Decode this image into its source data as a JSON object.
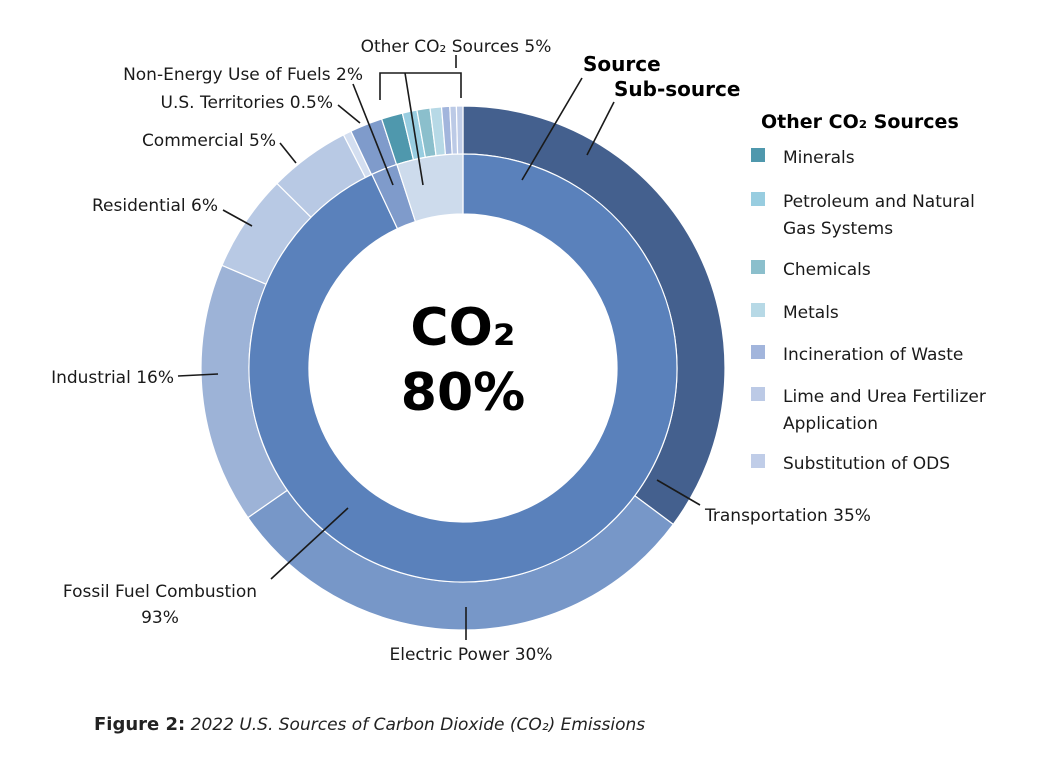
{
  "chart_data": {
    "type": "donut",
    "center_label_line1": "CO₂",
    "center_label_line2": "80%",
    "ring_legend": {
      "inner": "Source",
      "outer": "Sub-source"
    },
    "inner_ring": {
      "slices": [
        {
          "name": "Fossil Fuel Combustion",
          "label_line1": "Fossil Fuel Combustion",
          "label_line2": "93%",
          "value": 93,
          "color": "#5a81bb"
        },
        {
          "name": "Non-Energy Use of Fuels",
          "label": "Non-Energy Use of Fuels 2%",
          "value": 2,
          "color": "#7f9bcb"
        },
        {
          "name": "Other CO₂ Sources",
          "label": "Other CO₂ Sources 5%",
          "value": 5,
          "color": "#cddbec"
        }
      ]
    },
    "outer_ring": {
      "slices": [
        {
          "name": "Transportation",
          "label": "Transportation 35%",
          "value": 35,
          "color": "#44608e"
        },
        {
          "name": "Electric Power",
          "label": "Electric Power 30%",
          "value": 30,
          "color": "#7797c8"
        },
        {
          "name": "Industrial",
          "label": "Industrial 16%",
          "value": 16,
          "color": "#9db3d7"
        },
        {
          "name": "Residential",
          "label": "Residential 6%",
          "value": 6,
          "color": "#b8c9e4"
        },
        {
          "name": "Commercial",
          "label": "Commercial 5%",
          "value": 5,
          "color": "#b8c9e4"
        },
        {
          "name": "U.S. Territories",
          "label": "U.S. Territories 0.5%",
          "value": 0.5,
          "color": "#d3def0"
        },
        {
          "name": "Non-Energy Use of Fuels",
          "label": "",
          "value": 2,
          "color": "#7f9bcb"
        },
        {
          "name": "Minerals",
          "value": 1.3,
          "color": "#4f98ad"
        },
        {
          "name": "Petroleum and Natural Gas Systems",
          "value": 0.9,
          "color": "#98cde0"
        },
        {
          "name": "Chemicals",
          "value": 0.8,
          "color": "#8bbfcc"
        },
        {
          "name": "Metals",
          "value": 0.7,
          "color": "#b7d9e6"
        },
        {
          "name": "Incineration of Waste",
          "value": 0.5,
          "color": "#a2b5dc"
        },
        {
          "name": "Lime and Urea Fertilizer Application",
          "value": 0.4,
          "color": "#bccae6"
        },
        {
          "name": "Substitution of ODS",
          "value": 0.4,
          "color": "#c0cde8"
        }
      ]
    },
    "legend": {
      "title": "Other CO₂ Sources",
      "items": [
        {
          "line1": "Minerals",
          "line2": "",
          "color": "#4f98ad"
        },
        {
          "line1": "Petroleum and Natural",
          "line2": "Gas Systems",
          "color": "#98cde0"
        },
        {
          "line1": "Chemicals",
          "line2": "",
          "color": "#8bbfcc"
        },
        {
          "line1": "Metals",
          "line2": "",
          "color": "#b7d9e6"
        },
        {
          "line1": "Incineration of Waste",
          "line2": "",
          "color": "#a2b5dc"
        },
        {
          "line1": "Lime and Urea Fertilizer",
          "line2": "Application",
          "color": "#bccae6"
        },
        {
          "line1": "Substitution of ODS",
          "line2": "",
          "color": "#c0cde8"
        }
      ]
    }
  },
  "caption": {
    "figure_label": "Figure 2:",
    "text": "2022 U.S. Sources of Carbon Dioxide (CO₂) Emissions"
  }
}
